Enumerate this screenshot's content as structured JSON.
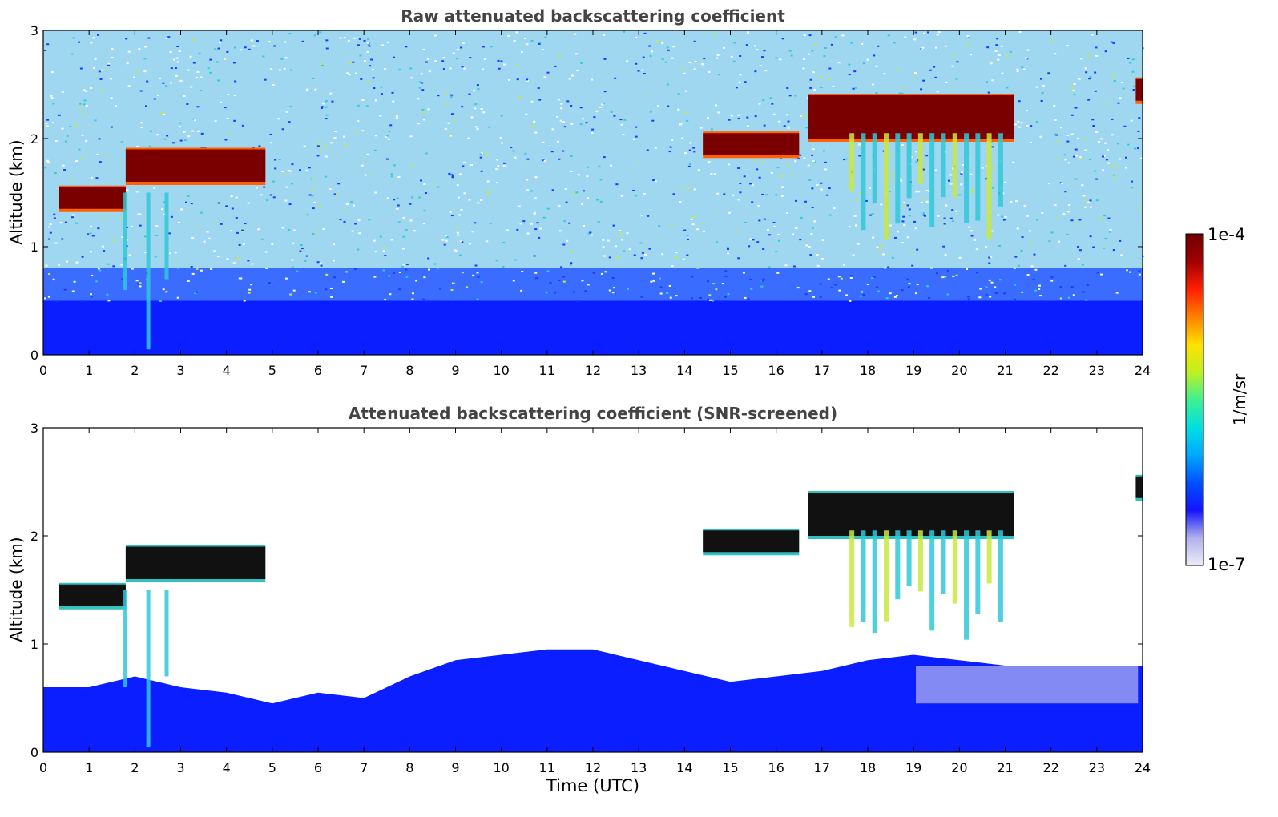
{
  "colors": {
    "cloud_core": "#7a0000",
    "background_aerosol": "#0a1eff",
    "colormap": [
      "#ececf8",
      "#b0b0ec",
      "#1414ff",
      "#0050ff",
      "#00a8ff",
      "#00e0e0",
      "#40f090",
      "#c0f020",
      "#ffe000",
      "#ff8000",
      "#ff2000",
      "#a00000",
      "#700000"
    ]
  },
  "colorbar": {
    "max_label": "1e-4",
    "min_label": "1e-7",
    "unit_label": "1/m/sr",
    "scale": "log",
    "range": [
      1e-07,
      0.0001
    ]
  },
  "xlabel": "Time (UTC)",
  "chart_data": [
    {
      "type": "heatmap",
      "title": "Raw attenuated backscattering coefficient",
      "ylabel": "Altitude (km)",
      "xlim": [
        0,
        24
      ],
      "ylim": [
        0,
        3
      ],
      "xticks": [
        "0",
        "1",
        "2",
        "3",
        "4",
        "5",
        "6",
        "7",
        "8",
        "9",
        "10",
        "11",
        "12",
        "13",
        "14",
        "15",
        "16",
        "17",
        "18",
        "19",
        "20",
        "21",
        "22",
        "23",
        "24"
      ],
      "yticks": [
        "0",
        "1",
        "2",
        "3"
      ],
      "screened": false,
      "cloud_layers": [
        {
          "x_start": 0.35,
          "x_end": 1.8,
          "base_km": 1.35,
          "top_km": 1.55
        },
        {
          "x_start": 1.8,
          "x_end": 4.85,
          "base_km": 1.6,
          "top_km": 1.9
        },
        {
          "x_start": 14.4,
          "x_end": 16.5,
          "base_km": 1.85,
          "top_km": 2.05
        },
        {
          "x_start": 16.7,
          "x_end": 21.2,
          "base_km": 2.0,
          "top_km": 2.4
        },
        {
          "x_start": 23.85,
          "x_end": 24.0,
          "base_km": 2.35,
          "top_km": 2.55
        }
      ],
      "boundary_layer_top_km": 0.5
    },
    {
      "type": "heatmap",
      "title": "Attenuated backscattering coefficient (SNR-screened)",
      "ylabel": "Altitude (km)",
      "xlim": [
        0,
        24
      ],
      "ylim": [
        0,
        3
      ],
      "xticks": [
        "0",
        "1",
        "2",
        "3",
        "4",
        "5",
        "6",
        "7",
        "8",
        "9",
        "10",
        "11",
        "12",
        "13",
        "14",
        "15",
        "16",
        "17",
        "18",
        "19",
        "20",
        "21",
        "22",
        "23",
        "24"
      ],
      "yticks": [
        "0",
        "1",
        "2",
        "3"
      ],
      "screened": true,
      "cloud_layers": [
        {
          "x_start": 0.35,
          "x_end": 1.8,
          "base_km": 1.35,
          "top_km": 1.55
        },
        {
          "x_start": 1.8,
          "x_end": 4.85,
          "base_km": 1.6,
          "top_km": 1.9
        },
        {
          "x_start": 14.4,
          "x_end": 16.5,
          "base_km": 1.85,
          "top_km": 2.05
        },
        {
          "x_start": 16.7,
          "x_end": 21.2,
          "base_km": 2.0,
          "top_km": 2.4
        },
        {
          "x_start": 23.85,
          "x_end": 24.0,
          "base_km": 2.35,
          "top_km": 2.55
        }
      ],
      "boundary_layer_top_km": [
        [
          0,
          0.6
        ],
        [
          1,
          0.6
        ],
        [
          2,
          0.7
        ],
        [
          3,
          0.6
        ],
        [
          4,
          0.55
        ],
        [
          5,
          0.45
        ],
        [
          6,
          0.55
        ],
        [
          7,
          0.5
        ],
        [
          8,
          0.7
        ],
        [
          9,
          0.85
        ],
        [
          10,
          0.9
        ],
        [
          11,
          0.95
        ],
        [
          12,
          0.95
        ],
        [
          13,
          0.85
        ],
        [
          14,
          0.75
        ],
        [
          15,
          0.65
        ],
        [
          16,
          0.7
        ],
        [
          17,
          0.75
        ],
        [
          18,
          0.85
        ],
        [
          19,
          0.9
        ],
        [
          20,
          0.85
        ],
        [
          21,
          0.8
        ],
        [
          22,
          0.8
        ],
        [
          23,
          0.8
        ],
        [
          24,
          0.8
        ]
      ]
    }
  ]
}
